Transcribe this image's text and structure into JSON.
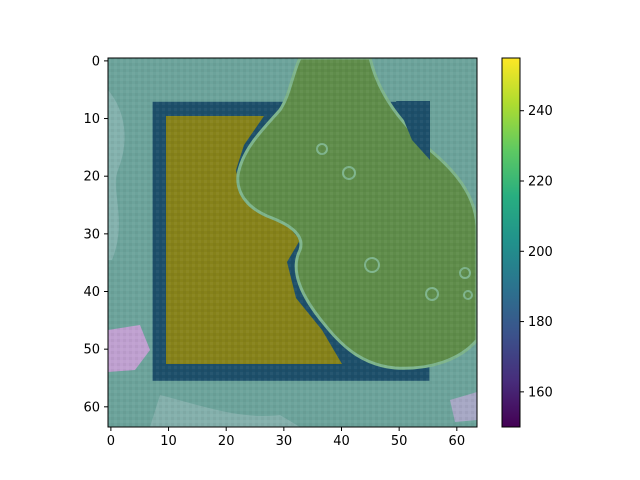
{
  "chart_data": {
    "type": "heatmap",
    "title": "",
    "xlabel": "",
    "ylabel": "",
    "image_size": [
      64,
      64
    ],
    "xlim": [
      -0.5,
      63.5
    ],
    "ylim": [
      63.5,
      -0.5
    ],
    "x_ticks": [
      0,
      10,
      20,
      30,
      40,
      50,
      60
    ],
    "y_ticks": [
      0,
      10,
      20,
      30,
      40,
      50,
      60
    ],
    "colorbar": {
      "colormap": "viridis",
      "range": [
        150,
        255
      ],
      "ticks": [
        160,
        180,
        200,
        220,
        240
      ]
    },
    "regions": [
      {
        "shape": "square-frame",
        "x": [
          7.5,
          55.5
        ],
        "y": [
          7.5,
          55.5
        ],
        "color": "#1d4f6a"
      },
      {
        "shape": "filled-square",
        "x": [
          9.5,
          50
        ],
        "y": [
          9.5,
          54
        ],
        "color": "#86821a"
      },
      {
        "shape": "blob",
        "x": [
          25,
          63.5
        ],
        "y": [
          -0.5,
          53
        ],
        "color": "#5f8c4a"
      }
    ],
    "colors": {
      "background_tile": "#6ca39b",
      "frame": "#1d4f6a",
      "square_fill": "#86821a",
      "blob_fill": "#5f8c4a",
      "blob_edge": "#7fb58d"
    }
  }
}
